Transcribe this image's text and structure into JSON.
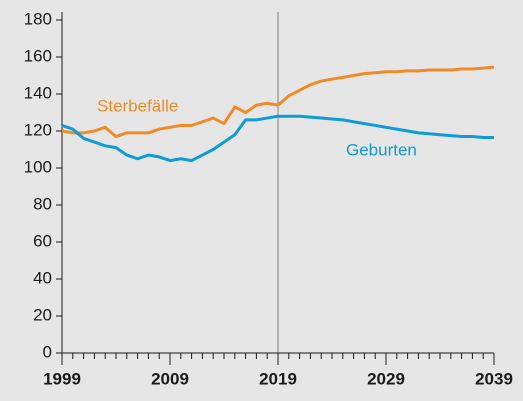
{
  "chart_data": {
    "type": "line",
    "x": [
      1999,
      2000,
      2001,
      2002,
      2003,
      2004,
      2005,
      2006,
      2007,
      2008,
      2009,
      2010,
      2011,
      2012,
      2013,
      2014,
      2015,
      2016,
      2017,
      2018,
      2019,
      2020,
      2021,
      2022,
      2023,
      2024,
      2025,
      2026,
      2027,
      2028,
      2029,
      2030,
      2031,
      2032,
      2033,
      2034,
      2035,
      2036,
      2037,
      2038,
      2039
    ],
    "series": [
      {
        "name": "Sterbefälle",
        "color": "#f08c28",
        "values": [
          120,
          119,
          119,
          120,
          122,
          117,
          119,
          119,
          119,
          121,
          122,
          123,
          123,
          125,
          127,
          124,
          133,
          130,
          134,
          135,
          134,
          139,
          142,
          145,
          147,
          148,
          149,
          150,
          151,
          151.5,
          152,
          152,
          152.5,
          152.5,
          153,
          153,
          153,
          153.5,
          153.5,
          154,
          154.5
        ]
      },
      {
        "name": "Geburten",
        "color": "#0f9bd7",
        "values": [
          123,
          121,
          116,
          114,
          112,
          111,
          107,
          105,
          107,
          106,
          104,
          105,
          104,
          107,
          110,
          114,
          118,
          126,
          126,
          127,
          128,
          128,
          128,
          127.5,
          127,
          126.5,
          126,
          125,
          124,
          123,
          122,
          121,
          120,
          119,
          118.5,
          118,
          117.5,
          117,
          117,
          116.5,
          116.5
        ]
      }
    ],
    "xlim": [
      1999,
      2039
    ],
    "xticks": [
      1999,
      2009,
      2019,
      2029,
      2039
    ],
    "ylim": [
      0,
      180
    ],
    "yticks": [
      0,
      20,
      40,
      60,
      80,
      100,
      120,
      140,
      160,
      180
    ],
    "vline": 2019,
    "grid": false
  }
}
